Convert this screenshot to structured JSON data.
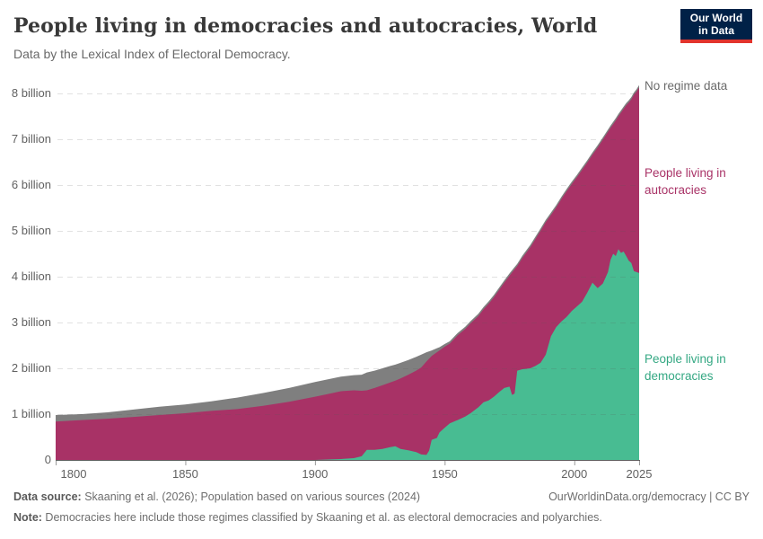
{
  "header": {
    "title": "People living in democracies and autocracies, World",
    "subtitle": "Data by the Lexical Index of Electoral Democracy.",
    "logo": {
      "line1": "Our World",
      "line2": "in Data",
      "bg_color": "#002147",
      "accent_color": "#e2342c"
    }
  },
  "annotations": {
    "no_regime": "No regime data",
    "autocracies": "People living in autocracies",
    "democracies": "People living in democracies"
  },
  "footer": {
    "source_label": "Data source:",
    "source_text": " Skaaning et al. (2026); Population based on various sources (2024)",
    "right_text": "OurWorldinData.org/democracy | CC BY",
    "note_label": "Note:",
    "note_text": " Democracies here include those regimes classified by Skaaning et al. as electoral democracies and polyarchies."
  },
  "chart_data": {
    "type": "area",
    "stacked": true,
    "title": "People living in democracies and autocracies, World",
    "xlabel": "",
    "ylabel": "",
    "unit": "billion people",
    "xlim": [
      1800,
      2025
    ],
    "ylim": [
      0,
      8.4
    ],
    "grid": "dashed-horizontal",
    "legend_position": "right-annotations",
    "xticks": [
      1800,
      1850,
      1900,
      1950,
      2000,
      2025
    ],
    "yticks": [
      {
        "value": 0,
        "label": "0"
      },
      {
        "value": 1,
        "label": "1 billion"
      },
      {
        "value": 2,
        "label": "2 billion"
      },
      {
        "value": 3,
        "label": "3 billion"
      },
      {
        "value": 4,
        "label": "4 billion"
      },
      {
        "value": 5,
        "label": "5 billion"
      },
      {
        "value": 6,
        "label": "6 billion"
      },
      {
        "value": 7,
        "label": "7 billion"
      },
      {
        "value": 8,
        "label": "8 billion"
      }
    ],
    "x": [
      1800,
      1810,
      1820,
      1830,
      1840,
      1850,
      1860,
      1870,
      1880,
      1890,
      1900,
      1905,
      1910,
      1915,
      1918,
      1920,
      1923,
      1926,
      1929,
      1931,
      1933,
      1936,
      1939,
      1941,
      1943,
      1944,
      1945,
      1947,
      1948,
      1950,
      1952,
      1955,
      1958,
      1960,
      1963,
      1965,
      1967,
      1969,
      1971,
      1973,
      1975,
      1976,
      1977,
      1978,
      1980,
      1983,
      1985,
      1987,
      1989,
      1990,
      1991,
      1993,
      1995,
      1997,
      1999,
      2001,
      2003,
      2005,
      2007,
      2009,
      2011,
      2013,
      2014,
      2015,
      2016,
      2017,
      2018,
      2019,
      2020,
      2021,
      2022,
      2023,
      2024,
      2025
    ],
    "series": [
      {
        "name": "People living in democracies",
        "color": "#48bc92",
        "values": [
          0,
          0,
          0,
          0,
          0,
          0,
          0,
          0,
          0,
          0,
          0,
          0.01,
          0.02,
          0.04,
          0.08,
          0.22,
          0.22,
          0.24,
          0.28,
          0.3,
          0.24,
          0.21,
          0.17,
          0.12,
          0.11,
          0.2,
          0.44,
          0.48,
          0.6,
          0.7,
          0.8,
          0.87,
          0.95,
          1.02,
          1.15,
          1.26,
          1.3,
          1.38,
          1.48,
          1.57,
          1.6,
          1.42,
          1.45,
          1.95,
          1.98,
          2.0,
          2.05,
          2.12,
          2.3,
          2.5,
          2.7,
          2.9,
          3.02,
          3.12,
          3.25,
          3.35,
          3.45,
          3.65,
          3.87,
          3.75,
          3.85,
          4.1,
          4.37,
          4.5,
          4.45,
          4.6,
          4.52,
          4.55,
          4.45,
          4.35,
          4.3,
          4.12,
          4.1,
          4.08
        ]
      },
      {
        "name": "People living in autocracies",
        "color": "#a83266",
        "values": [
          0.84,
          0.87,
          0.9,
          0.94,
          0.98,
          1.02,
          1.07,
          1.11,
          1.18,
          1.27,
          1.38,
          1.43,
          1.48,
          1.48,
          1.43,
          1.3,
          1.35,
          1.39,
          1.41,
          1.43,
          1.54,
          1.65,
          1.78,
          1.9,
          2.04,
          2.01,
          1.83,
          1.87,
          1.79,
          1.77,
          1.74,
          1.85,
          1.91,
          1.96,
          1.99,
          2.03,
          2.11,
          2.17,
          2.23,
          2.3,
          2.42,
          2.67,
          2.71,
          2.28,
          2.43,
          2.64,
          2.77,
          2.88,
          2.89,
          2.77,
          2.65,
          2.61,
          2.67,
          2.74,
          2.77,
          2.82,
          2.88,
          2.84,
          2.79,
          3.07,
          3.14,
          3.06,
          2.88,
          2.83,
          2.96,
          2.9,
          3.06,
          3.11,
          3.29,
          3.45,
          3.57,
          3.85,
          3.94,
          4.05
        ]
      },
      {
        "name": "No regime data",
        "color": "#7f7f7f",
        "values": [
          0.14,
          0.13,
          0.14,
          0.16,
          0.18,
          0.19,
          0.21,
          0.25,
          0.28,
          0.3,
          0.32,
          0.32,
          0.32,
          0.33,
          0.35,
          0.39,
          0.38,
          0.37,
          0.36,
          0.35,
          0.34,
          0.32,
          0.3,
          0.28,
          0.2,
          0.16,
          0.12,
          0.09,
          0.07,
          0.06,
          0.05,
          0.05,
          0.05,
          0.05,
          0.05,
          0.05,
          0.05,
          0.05,
          0.05,
          0.05,
          0.05,
          0.05,
          0.05,
          0.05,
          0.05,
          0.05,
          0.05,
          0.05,
          0.05,
          0.05,
          0.05,
          0.05,
          0.05,
          0.05,
          0.05,
          0.05,
          0.05,
          0.05,
          0.05,
          0.05,
          0.05,
          0.05,
          0.05,
          0.05,
          0.05,
          0.05,
          0.05,
          0.05,
          0.05,
          0.05,
          0.05,
          0.05,
          0.05,
          0.05
        ]
      }
    ]
  }
}
